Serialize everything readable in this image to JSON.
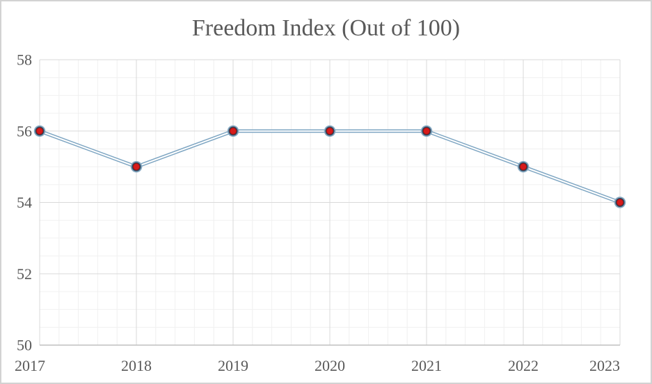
{
  "chart_data": {
    "type": "line",
    "title": "Freedom Index (Out of 100)",
    "x": [
      2017,
      2018,
      2019,
      2020,
      2021,
      2022,
      2023
    ],
    "x_tick_labels": [
      "2017",
      "2018",
      "2019",
      "2020",
      "2021",
      "2022",
      "2023"
    ],
    "series": [
      {
        "name": "Freedom Index",
        "values": [
          56,
          55,
          56,
          56,
          56,
          55,
          54
        ]
      }
    ],
    "ylim": [
      50,
      58
    ],
    "y_major_unit": 2,
    "y_minor_unit": 0.5,
    "x_minor_divisions_per_major": 5,
    "y_tick_labels": [
      "50",
      "52",
      "54",
      "56",
      "58"
    ],
    "y_ticks": [
      50,
      52,
      54,
      56,
      58
    ],
    "grid": {
      "major": true,
      "minor": true
    },
    "legend_position": "none",
    "colors": {
      "text": "#595959",
      "minor_grid": "#f0f0f0",
      "major_grid": "#d9d9d9",
      "axis_line": "#bfbfbf",
      "line": "#7da5c2",
      "line_center": "#ffffff",
      "marker_outer_ring": "#87aac3",
      "marker_dark_ring": "#31465c",
      "marker_fill": "#d71b1b",
      "marker_fill_rim": "#a21212"
    }
  }
}
